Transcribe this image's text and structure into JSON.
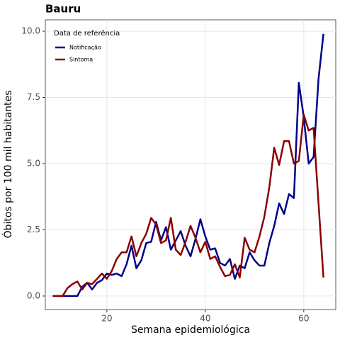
{
  "chart_data": {
    "type": "line",
    "title": "Bauru",
    "xlabel": "Semana epidemiológica",
    "ylabel": "Óbitos por 100 mil habitantes",
    "legend_title": "Data de referência",
    "legend": "top-left",
    "grid": true,
    "x": [
      9,
      10,
      11,
      12,
      13,
      14,
      15,
      16,
      17,
      18,
      19,
      20,
      21,
      22,
      23,
      24,
      25,
      26,
      27,
      28,
      29,
      30,
      31,
      32,
      33,
      34,
      35,
      36,
      37,
      38,
      39,
      40,
      41,
      42,
      43,
      44,
      45,
      46,
      47,
      48,
      49,
      50,
      51,
      52,
      53,
      54,
      55,
      56,
      57,
      58,
      59,
      60,
      61,
      62,
      63,
      64
    ],
    "xlim": [
      7.5,
      66.5
    ],
    "xticks": [
      20,
      40,
      60
    ],
    "ylim": [
      -0.51,
      10.43
    ],
    "yticks": [
      {
        "value": 0,
        "label": "0.0"
      },
      2.5,
      {
        "value": 5,
        "label": "5.0"
      },
      7.5,
      {
        "value": 10,
        "label": "10.0"
      }
    ],
    "series": [
      {
        "name": "Notificação",
        "color": "#00008b",
        "values": [
          0,
          0,
          0,
          0,
          0,
          0,
          0.35,
          0.5,
          0.25,
          0.5,
          0.6,
          0.85,
          0.8,
          0.85,
          0.75,
          1.2,
          1.9,
          1.05,
          1.35,
          2.0,
          2.05,
          2.8,
          2.1,
          2.6,
          1.75,
          2.1,
          2.45,
          1.9,
          1.5,
          2.15,
          2.9,
          2.25,
          1.75,
          1.8,
          1.25,
          1.15,
          1.4,
          0.65,
          1.15,
          1.05,
          1.65,
          1.35,
          1.15,
          1.15,
          2.0,
          2.65,
          3.5,
          3.1,
          3.85,
          3.7,
          8.05,
          6.75,
          5.0,
          5.25,
          8.2,
          9.9
        ]
      },
      {
        "name": "Sintoma",
        "color": "#8b0000",
        "values": [
          0,
          0,
          0,
          0.3,
          0.45,
          0.55,
          0.25,
          0.5,
          0.45,
          0.65,
          0.85,
          0.65,
          0.95,
          1.4,
          1.65,
          1.65,
          2.25,
          1.5,
          2.0,
          2.35,
          2.95,
          2.7,
          2.0,
          2.1,
          2.95,
          1.75,
          1.55,
          2.05,
          2.65,
          2.2,
          1.65,
          2.05,
          1.4,
          1.5,
          1.1,
          0.75,
          0.8,
          1.2,
          0.7,
          2.2,
          1.75,
          1.65,
          2.25,
          3.0,
          4.1,
          5.6,
          4.95,
          5.85,
          5.85,
          5.0,
          5.1,
          6.85,
          6.25,
          6.35,
          3.5,
          0.7
        ]
      }
    ]
  }
}
